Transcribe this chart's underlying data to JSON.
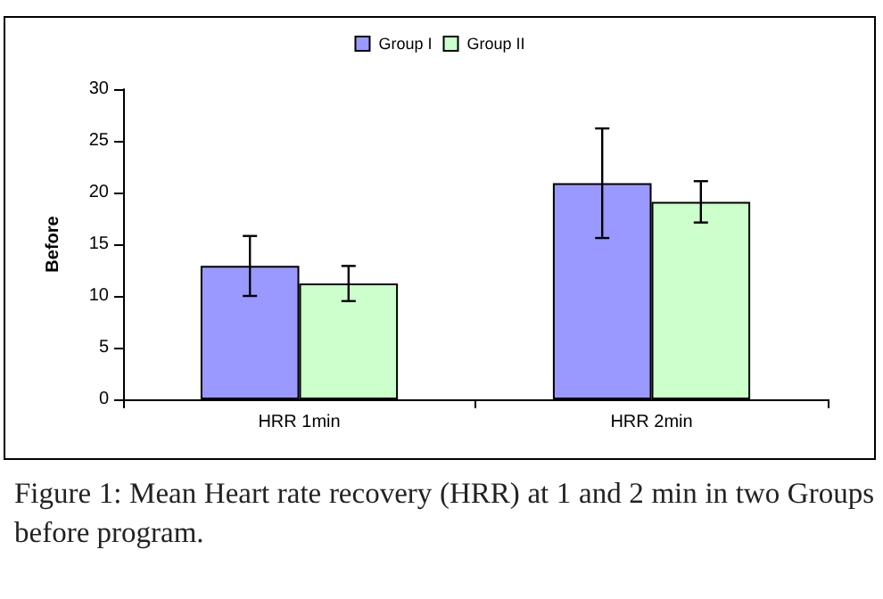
{
  "chart_data": {
    "type": "bar",
    "categories": [
      "HRR 1min",
      "HRR 2min"
    ],
    "ylabel": "Before",
    "series": [
      {
        "name": "Group I",
        "color": "#9999ff",
        "values": [
          12.9,
          20.9
        ],
        "errors": [
          2.9,
          5.3
        ]
      },
      {
        "name": "Group II",
        "color": "#ccffcc",
        "values": [
          11.2,
          19.1
        ],
        "errors": [
          1.7,
          2.0
        ]
      }
    ],
    "ylim": [
      0,
      30
    ],
    "yticks": [
      0,
      5,
      10,
      15,
      20,
      25,
      30
    ],
    "grid": false,
    "legend": "top",
    "annotations": [
      "Figure 1: Mean Heart rate recovery (HRR) at 1 and 2 min in two Groups before program."
    ]
  }
}
